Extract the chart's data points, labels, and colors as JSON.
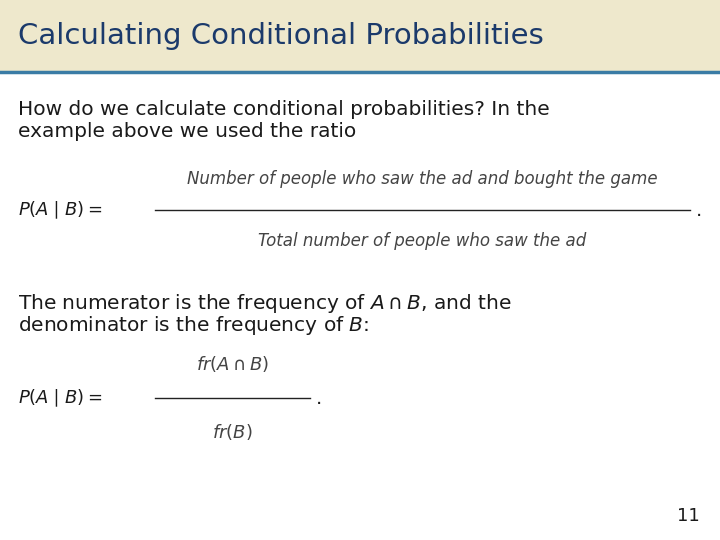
{
  "title": "Calculating Conditional Probabilities",
  "title_color": "#1B3A6B",
  "title_bg_color": "#EEE8CC",
  "title_border_color": "#3A7CA5",
  "body_bg_color": "#FFFFFF",
  "text1_line1": "How do we calculate conditional probabilities? In the",
  "text1_line2": "example above we used the ratio",
  "text2_line1": "The numerator is the frequency of $A \\cap B$, and the",
  "text2_line2": "denominator is the frequency of $B$:",
  "formula1_num": "Number of people who saw the ad and bought the game",
  "formula1_den": "Total number of people who saw the ad",
  "page_number": "11",
  "text_color": "#1A1A1A",
  "formula_color": "#444444",
  "title_fontsize": 21,
  "body_fontsize": 14.5,
  "formula_text_fontsize": 12
}
